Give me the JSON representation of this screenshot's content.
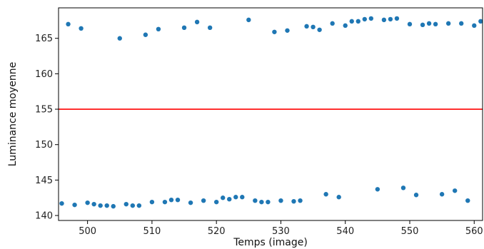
{
  "chart_data": {
    "type": "scatter",
    "xlabel": "Temps (image)",
    "ylabel": "Luminance moyenne",
    "xlim": [
      495.5,
      561.3
    ],
    "ylim": [
      139.3,
      169.3
    ],
    "x_ticks": [
      500,
      510,
      520,
      530,
      540,
      550,
      560
    ],
    "y_ticks": [
      140,
      145,
      150,
      155,
      160,
      165
    ],
    "grid": false,
    "legend": "none",
    "reference_line": {
      "y": 155,
      "color": "#ff0000"
    },
    "series": [
      {
        "color": "#1f77b4",
        "points": [
          [
            496,
            141.7
          ],
          [
            497,
            167.0
          ],
          [
            498,
            141.5
          ],
          [
            499,
            166.4
          ],
          [
            500,
            141.8
          ],
          [
            501,
            141.6
          ],
          [
            502,
            141.4
          ],
          [
            503,
            141.4
          ],
          [
            504,
            141.3
          ],
          [
            505,
            165.0
          ],
          [
            506,
            141.6
          ],
          [
            507,
            141.4
          ],
          [
            508,
            141.4
          ],
          [
            509,
            165.5
          ],
          [
            510,
            141.9
          ],
          [
            511,
            166.3
          ],
          [
            512,
            141.9
          ],
          [
            513,
            142.2
          ],
          [
            514,
            142.2
          ],
          [
            515,
            166.5
          ],
          [
            516,
            141.8
          ],
          [
            517,
            167.3
          ],
          [
            518,
            142.1
          ],
          [
            519,
            166.5
          ],
          [
            520,
            141.9
          ],
          [
            521,
            142.5
          ],
          [
            522,
            142.3
          ],
          [
            523,
            142.6
          ],
          [
            524,
            142.6
          ],
          [
            525,
            167.6
          ],
          [
            526,
            142.1
          ],
          [
            527,
            141.9
          ],
          [
            528,
            141.9
          ],
          [
            529,
            165.9
          ],
          [
            530,
            142.1
          ],
          [
            531,
            166.1
          ],
          [
            532,
            142.0
          ],
          [
            533,
            142.1
          ],
          [
            534,
            166.7
          ],
          [
            535,
            166.6
          ],
          [
            536,
            166.2
          ],
          [
            537,
            143.0
          ],
          [
            538,
            167.1
          ],
          [
            539,
            142.6
          ],
          [
            540,
            166.8
          ],
          [
            541,
            167.4
          ],
          [
            542,
            167.4
          ],
          [
            543,
            167.7
          ],
          [
            544,
            167.8
          ],
          [
            545,
            143.7
          ],
          [
            546,
            167.6
          ],
          [
            547,
            167.7
          ],
          [
            548,
            167.8
          ],
          [
            549,
            143.9
          ],
          [
            550,
            167.0
          ],
          [
            551,
            142.9
          ],
          [
            552,
            166.9
          ],
          [
            553,
            167.1
          ],
          [
            554,
            167.0
          ],
          [
            555,
            143.0
          ],
          [
            556,
            167.1
          ],
          [
            557,
            143.5
          ],
          [
            558,
            167.1
          ],
          [
            559,
            142.1
          ],
          [
            560,
            166.8
          ],
          [
            561,
            167.4
          ]
        ]
      }
    ]
  }
}
